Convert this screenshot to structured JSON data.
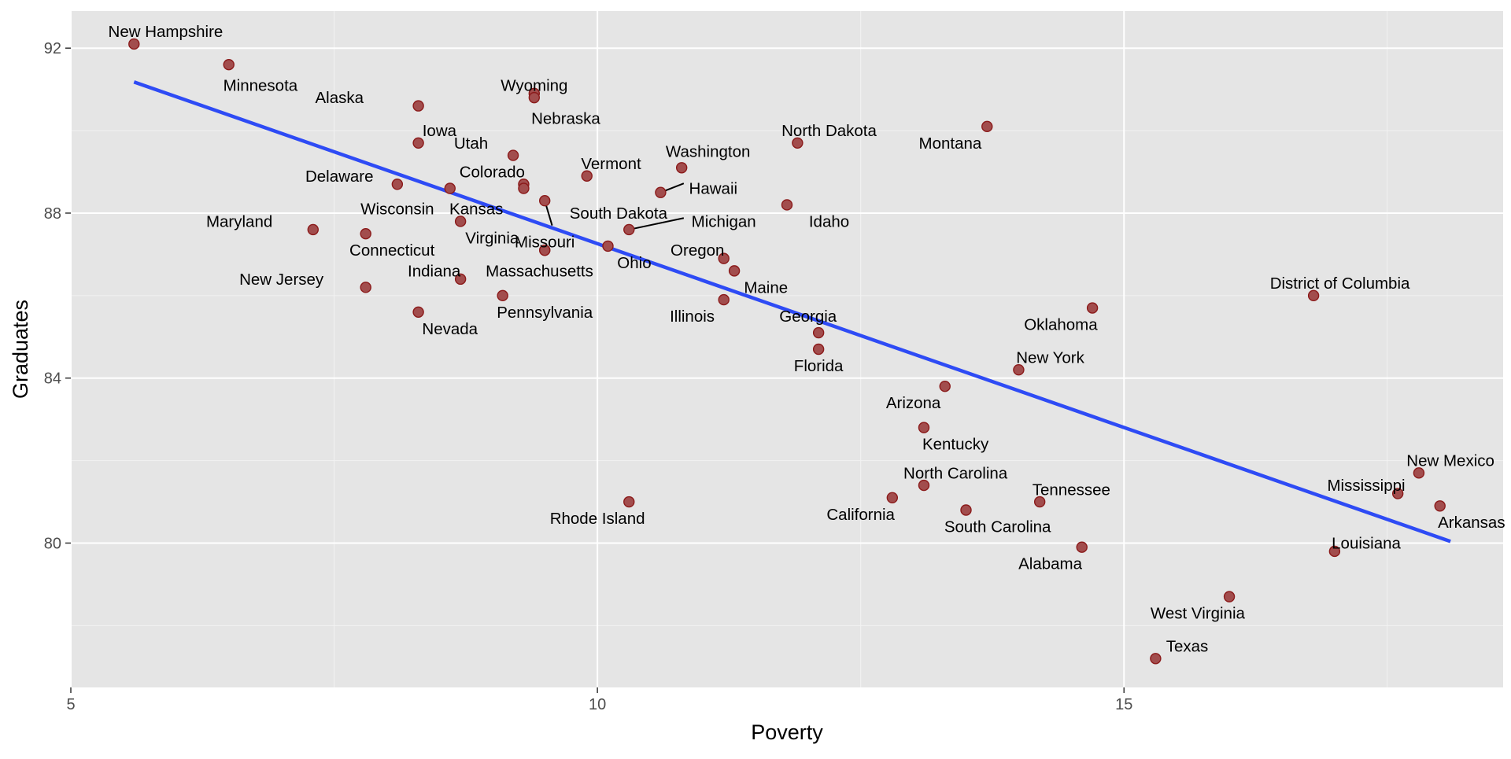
{
  "chart_data": {
    "type": "scatter",
    "title": "",
    "xlabel": "Poverty",
    "ylabel": "Graduates",
    "xlim": [
      5,
      18.6
    ],
    "ylim": [
      76.5,
      92.9
    ],
    "x_ticks": [
      5,
      10,
      15
    ],
    "y_ticks": [
      80,
      84,
      88,
      92
    ],
    "x_tick_labels": [
      "5",
      "10",
      "15"
    ],
    "y_tick_labels": [
      "80",
      "84",
      "88",
      "92"
    ],
    "grid": true,
    "legend": "none",
    "point_color": "#8b1a1a",
    "point_fill": "#a24d4d",
    "line_color": "#2e4bf5",
    "panel_color": "#e5e5e5",
    "trend_line": {
      "x": [
        5.6,
        18.1
      ],
      "y": [
        91.18,
        80.04
      ]
    },
    "points": [
      {
        "label": "New Hampshire",
        "x": 5.6,
        "y": 92.1,
        "lx": 5.9,
        "ly": 92.4
      },
      {
        "label": "Minnesota",
        "x": 6.5,
        "y": 91.6,
        "lx": 6.8,
        "ly": 91.1
      },
      {
        "label": "Alaska",
        "x": 8.3,
        "y": 90.6,
        "lx": 7.55,
        "ly": 90.8
      },
      {
        "label": "Iowa",
        "x": 8.3,
        "y": 89.7,
        "lx": 8.5,
        "ly": 90.0
      },
      {
        "label": "Wyoming",
        "x": 9.4,
        "y": 90.9,
        "lx": 9.4,
        "ly": 91.1
      },
      {
        "label": "Nebraska",
        "x": 9.4,
        "y": 90.8,
        "lx": 9.7,
        "ly": 90.3
      },
      {
        "label": "Utah",
        "x": 9.2,
        "y": 89.4,
        "lx": 8.8,
        "ly": 89.7
      },
      {
        "label": "Vermont",
        "x": 9.9,
        "y": 88.9,
        "lx": 10.13,
        "ly": 89.2
      },
      {
        "label": "Washington",
        "x": 10.8,
        "y": 89.1,
        "lx": 11.05,
        "ly": 89.5
      },
      {
        "label": "North Dakota",
        "x": 11.9,
        "y": 89.7,
        "lx": 12.2,
        "ly": 90.0
      },
      {
        "label": "Montana",
        "x": 13.7,
        "y": 90.1,
        "lx": 13.35,
        "ly": 89.7
      },
      {
        "label": "Delaware",
        "x": 8.1,
        "y": 88.7,
        "lx": 7.55,
        "ly": 88.9
      },
      {
        "label": "Colorado",
        "x": 9.3,
        "y": 88.7,
        "lx": 9.0,
        "ly": 89.0
      },
      {
        "label": "Wisconsin",
        "x": 8.6,
        "y": 88.6,
        "lx": 8.1,
        "ly": 88.1
      },
      {
        "label": "Kansas",
        "x": 9.3,
        "y": 88.6,
        "lx": 8.85,
        "ly": 88.1
      },
      {
        "label": "Hawaii",
        "x": 10.6,
        "y": 88.5,
        "lx": 11.1,
        "ly": 88.6,
        "leader": [
          10.6,
          88.5,
          10.82,
          88.72
        ]
      },
      {
        "label": "South Dakota",
        "x": 9.5,
        "y": 88.3,
        "lx": 10.2,
        "ly": 88.0,
        "leader": [
          9.5,
          88.3,
          9.57,
          87.7
        ]
      },
      {
        "label": "Idaho",
        "x": 11.8,
        "y": 88.2,
        "lx": 12.2,
        "ly": 87.8
      },
      {
        "label": "Maryland",
        "x": 7.3,
        "y": 87.6,
        "lx": 6.6,
        "ly": 87.8
      },
      {
        "label": "Virginia",
        "x": 8.7,
        "y": 87.8,
        "lx": 9.0,
        "ly": 87.4
      },
      {
        "label": "Michigan",
        "x": 10.3,
        "y": 87.6,
        "lx": 11.2,
        "ly": 87.8,
        "leader": [
          10.3,
          87.6,
          10.82,
          87.88
        ]
      },
      {
        "label": "Connecticut",
        "x": 7.8,
        "y": 87.5,
        "lx": 8.05,
        "ly": 87.1
      },
      {
        "label": "Missouri",
        "x": 9.5,
        "y": 87.1,
        "lx": 9.5,
        "ly": 87.3
      },
      {
        "label": "Ohio",
        "x": 10.1,
        "y": 87.2,
        "lx": 10.35,
        "ly": 86.8
      },
      {
        "label": "Oregon",
        "x": 11.2,
        "y": 86.9,
        "lx": 10.95,
        "ly": 87.1
      },
      {
        "label": "Massachusetts",
        "x": 9.5,
        "y": 87.1,
        "lx": 9.45,
        "ly": 86.6
      },
      {
        "label": "Indiana",
        "x": 8.7,
        "y": 86.4,
        "lx": 8.45,
        "ly": 86.6
      },
      {
        "label": "Maine",
        "x": 11.3,
        "y": 86.6,
        "lx": 11.6,
        "ly": 86.2
      },
      {
        "label": "New Jersey",
        "x": 7.8,
        "y": 86.2,
        "lx": 7.0,
        "ly": 86.4
      },
      {
        "label": "Pennsylvania",
        "x": 9.1,
        "y": 86.0,
        "lx": 9.5,
        "ly": 85.6
      },
      {
        "label": "Illinois",
        "x": 11.2,
        "y": 85.9,
        "lx": 10.9,
        "ly": 85.5
      },
      {
        "label": "Georgia",
        "x": 12.1,
        "y": 85.1,
        "lx": 12.0,
        "ly": 85.5
      },
      {
        "label": "Nevada",
        "x": 8.3,
        "y": 85.6,
        "lx": 8.6,
        "ly": 85.2
      },
      {
        "label": "Florida",
        "x": 12.1,
        "y": 84.7,
        "lx": 12.1,
        "ly": 84.3
      },
      {
        "label": "Oklahoma",
        "x": 14.7,
        "y": 85.7,
        "lx": 14.4,
        "ly": 85.3
      },
      {
        "label": "District of Columbia",
        "x": 16.8,
        "y": 86.0,
        "lx": 17.05,
        "ly": 86.3
      },
      {
        "label": "New York",
        "x": 14.0,
        "y": 84.2,
        "lx": 14.3,
        "ly": 84.5
      },
      {
        "label": "Arizona",
        "x": 13.3,
        "y": 83.8,
        "lx": 13.0,
        "ly": 83.4
      },
      {
        "label": "Kentucky",
        "x": 13.1,
        "y": 82.8,
        "lx": 13.4,
        "ly": 82.4
      },
      {
        "label": "North Carolina",
        "x": 13.1,
        "y": 81.4,
        "lx": 13.4,
        "ly": 81.7
      },
      {
        "label": "California",
        "x": 12.8,
        "y": 81.1,
        "lx": 12.5,
        "ly": 80.7
      },
      {
        "label": "Tennessee",
        "x": 14.2,
        "y": 81.0,
        "lx": 14.5,
        "ly": 81.3
      },
      {
        "label": "South Carolina",
        "x": 13.5,
        "y": 80.8,
        "lx": 13.8,
        "ly": 80.4
      },
      {
        "label": "Rhode Island",
        "x": 10.3,
        "y": 81.0,
        "lx": 10.0,
        "ly": 80.6
      },
      {
        "label": "Alabama",
        "x": 14.6,
        "y": 79.9,
        "lx": 14.3,
        "ly": 79.5
      },
      {
        "label": "Mississippi",
        "x": 17.6,
        "y": 81.2,
        "lx": 17.3,
        "ly": 81.4
      },
      {
        "label": "New Mexico",
        "x": 17.8,
        "y": 81.7,
        "lx": 18.1,
        "ly": 82.0
      },
      {
        "label": "Arkansas",
        "x": 18.0,
        "y": 80.9,
        "lx": 18.3,
        "ly": 80.5
      },
      {
        "label": "Louisiana",
        "x": 17.0,
        "y": 79.8,
        "lx": 17.3,
        "ly": 80.0
      },
      {
        "label": "West Virginia",
        "x": 16.0,
        "y": 78.7,
        "lx": 15.7,
        "ly": 78.3
      },
      {
        "label": "Texas",
        "x": 15.3,
        "y": 77.2,
        "lx": 15.6,
        "ly": 77.5
      }
    ]
  }
}
